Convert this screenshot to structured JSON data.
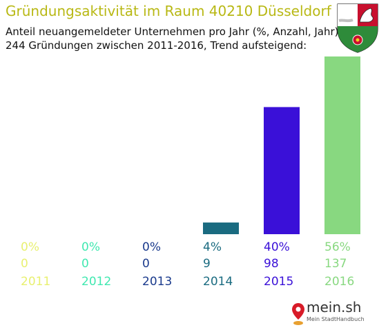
{
  "header": {
    "title": "Gründungsaktivität im Raum 40210 Düsseldorf",
    "subtitle_line1": "Anteil neuangemeldeter Unternehmen pro Jahr (%, Anzahl, Jahr)",
    "subtitle_line2": "244 Gründungen zwischen 2011-2016, Trend aufsteigend:"
  },
  "crest": {
    "icon": "nrw-coat-of-arms-icon"
  },
  "brand": {
    "name": "mein.sh",
    "tagline": "Mein StadtHandbuch",
    "icon": "map-pin-icon"
  },
  "chart_data": {
    "type": "bar",
    "categories": [
      "2011",
      "2012",
      "2013",
      "2014",
      "2015",
      "2016"
    ],
    "values": [
      0,
      0,
      0,
      9,
      98,
      137
    ],
    "percent_labels": [
      "0%",
      "0%",
      "0%",
      "4%",
      "40%",
      "56%"
    ],
    "colors": [
      "#e8f070",
      "#40e8b0",
      "#1a3a8c",
      "#1a6b80",
      "#3a10d8",
      "#88d880"
    ],
    "ylim": [
      0,
      137
    ],
    "grid": false,
    "legend": "none"
  }
}
